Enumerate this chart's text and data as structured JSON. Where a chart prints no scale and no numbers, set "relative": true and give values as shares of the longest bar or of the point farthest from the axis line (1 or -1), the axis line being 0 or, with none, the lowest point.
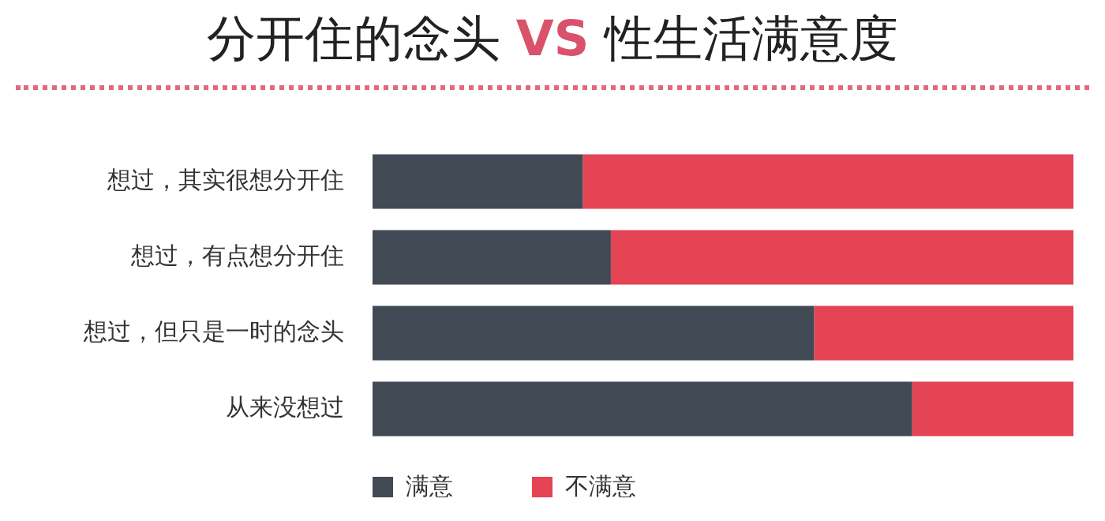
{
  "chart_data": {
    "type": "bar",
    "orientation": "horizontal",
    "stacked": true,
    "relative": true,
    "title": "分开住的念头 VS 性生活满意度",
    "categories": [
      "想过，其实很想分开住",
      "想过，有点想分开住",
      "想过，但只是一时的念头",
      "从来没想过"
    ],
    "series": [
      {
        "name": "满意",
        "color": "#414a55",
        "values": [
          0.3,
          0.34,
          0.63,
          0.77
        ]
      },
      {
        "name": "不满意",
        "color": "#e44454",
        "values": [
          0.7,
          0.66,
          0.37,
          0.23
        ]
      }
    ],
    "legend": "bottom left"
  }
}
